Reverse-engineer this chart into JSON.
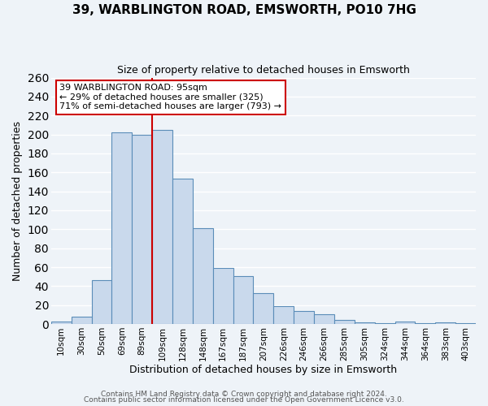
{
  "title": "39, WARBLINGTON ROAD, EMSWORTH, PO10 7HG",
  "subtitle": "Size of property relative to detached houses in Emsworth",
  "xlabel": "Distribution of detached houses by size in Emsworth",
  "ylabel": "Number of detached properties",
  "bar_labels": [
    "10sqm",
    "30sqm",
    "50sqm",
    "69sqm",
    "89sqm",
    "109sqm",
    "128sqm",
    "148sqm",
    "167sqm",
    "187sqm",
    "207sqm",
    "226sqm",
    "246sqm",
    "266sqm",
    "285sqm",
    "305sqm",
    "324sqm",
    "344sqm",
    "364sqm",
    "383sqm",
    "403sqm"
  ],
  "bar_values": [
    3,
    8,
    46,
    202,
    200,
    205,
    153,
    101,
    59,
    51,
    33,
    19,
    14,
    10,
    4,
    2,
    1,
    3,
    1,
    2,
    1
  ],
  "bar_color": "#c9d9ec",
  "bar_edge_color": "#5b8db8",
  "vline_x": 4.5,
  "vline_color": "#cc0000",
  "annotation_line1": "39 WARBLINGTON ROAD: 95sqm",
  "annotation_line2": "← 29% of detached houses are smaller (325)",
  "annotation_line3": "71% of semi-detached houses are larger (793) →",
  "ylim": [
    0,
    260
  ],
  "yticks": [
    0,
    20,
    40,
    60,
    80,
    100,
    120,
    140,
    160,
    180,
    200,
    220,
    240,
    260
  ],
  "bg_color": "#eef3f8",
  "grid_color": "#ffffff",
  "footer_line1": "Contains HM Land Registry data © Crown copyright and database right 2024.",
  "footer_line2": "Contains public sector information licensed under the Open Government Licence v3.0."
}
